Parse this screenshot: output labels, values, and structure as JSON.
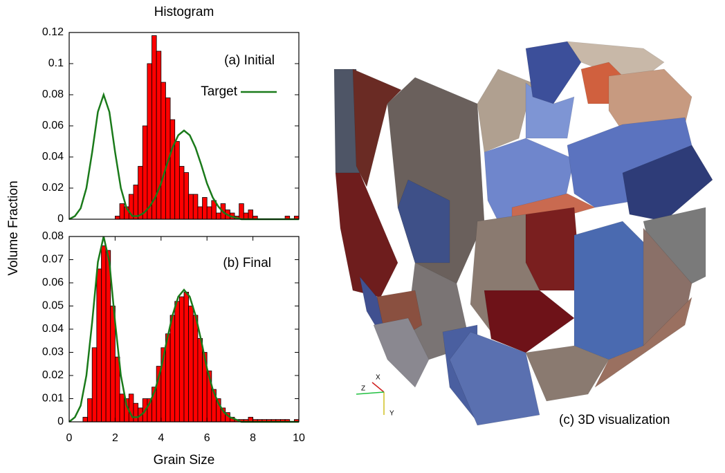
{
  "chart_data": [
    {
      "type": "histogram",
      "title": "Histogram",
      "ylabel": "Volume Fraction",
      "annotation": "(a) Initial",
      "bins": [
        0,
        0.2,
        0.4,
        0.6,
        0.8,
        1,
        1.2,
        1.4,
        1.6,
        1.8,
        2,
        2.2,
        2.4,
        2.6,
        2.8,
        3,
        3.2,
        3.4,
        3.6,
        3.8,
        4,
        4.2,
        4.4,
        4.6,
        4.8,
        5,
        5.2,
        5.4,
        5.6,
        5.8,
        6,
        6.2,
        6.4,
        6.6,
        6.8,
        7,
        7.2,
        7.4,
        7.6,
        7.8,
        8,
        8.2,
        8.4,
        8.6,
        8.8,
        9,
        9.2,
        9.4,
        9.6,
        9.8,
        10
      ],
      "values": [
        0,
        0,
        0,
        0,
        0,
        0,
        0,
        0,
        0,
        0,
        0.002,
        0.01,
        0.008,
        0.016,
        0.022,
        0.034,
        0.06,
        0.1,
        0.118,
        0.108,
        0.088,
        0.078,
        0.064,
        0.05,
        0.034,
        0.03,
        0.016,
        0.016,
        0.008,
        0.014,
        0.008,
        0.012,
        0.004,
        0.01,
        0.006,
        0.004,
        0.002,
        0.01,
        0.004,
        0.006,
        0.002,
        0,
        0,
        0,
        0,
        0,
        0,
        0.002,
        0,
        0.002
      ],
      "color": "#ff0000",
      "overlay": {
        "name": "Target",
        "color": "#1a7a1a",
        "x": [
          0,
          0.25,
          0.5,
          0.75,
          1,
          1.25,
          1.5,
          1.75,
          2,
          2.25,
          2.5,
          2.75,
          3,
          3.25,
          3.5,
          3.75,
          4,
          4.25,
          4.5,
          4.75,
          5,
          5.25,
          5.5,
          5.75,
          6,
          6.25,
          6.5,
          6.75,
          7,
          7.25,
          7.5,
          7.75,
          8,
          8.25,
          8.5,
          8.75,
          9,
          9.25,
          9.5,
          9.75,
          10
        ],
        "values": [
          0,
          0.002,
          0.007,
          0.02,
          0.043,
          0.069,
          0.08,
          0.069,
          0.043,
          0.02,
          0.007,
          0.002,
          0.002,
          0.004,
          0.008,
          0.014,
          0.023,
          0.035,
          0.046,
          0.054,
          0.057,
          0.054,
          0.046,
          0.035,
          0.023,
          0.014,
          0.008,
          0.004,
          0.002,
          0.001,
          0,
          0,
          0,
          0,
          0,
          0,
          0,
          0,
          0,
          0,
          0
        ]
      },
      "legend": "upper right",
      "xlim": [
        0,
        10
      ],
      "ylim": [
        0,
        0.12
      ],
      "yticks": [
        0,
        0.02,
        0.04,
        0.06,
        0.08,
        0.1,
        0.12
      ]
    },
    {
      "type": "histogram",
      "xlabel": "Grain Size",
      "annotation": "(b) Final",
      "bins": [
        0,
        0.2,
        0.4,
        0.6,
        0.8,
        1,
        1.2,
        1.4,
        1.6,
        1.8,
        2,
        2.2,
        2.4,
        2.6,
        2.8,
        3,
        3.2,
        3.4,
        3.6,
        3.8,
        4,
        4.2,
        4.4,
        4.6,
        4.8,
        5,
        5.2,
        5.4,
        5.6,
        5.8,
        6,
        6.2,
        6.4,
        6.6,
        6.8,
        7,
        7.2,
        7.4,
        7.6,
        7.8,
        8,
        8.2,
        8.4,
        8.6,
        8.8,
        9,
        9.2,
        9.4,
        9.6,
        9.8,
        10
      ],
      "values": [
        0,
        0,
        0,
        0.002,
        0.01,
        0.032,
        0.066,
        0.076,
        0.074,
        0.05,
        0.028,
        0.012,
        0.01,
        0.012,
        0.008,
        0.006,
        0.01,
        0.01,
        0.015,
        0.024,
        0.032,
        0.038,
        0.046,
        0.052,
        0.054,
        0.056,
        0.05,
        0.046,
        0.036,
        0.03,
        0.022,
        0.014,
        0.01,
        0.006,
        0.004,
        0.002,
        0.001,
        0.001,
        0.001,
        0.002,
        0.001,
        0.001,
        0.001,
        0.001,
        0.001,
        0.001,
        0.001,
        0.001,
        0,
        0.001
      ],
      "color": "#ff0000",
      "overlay": {
        "color": "#1a7a1a",
        "x": [
          0,
          0.25,
          0.5,
          0.75,
          1,
          1.25,
          1.5,
          1.75,
          2,
          2.25,
          2.5,
          2.75,
          3,
          3.25,
          3.5,
          3.75,
          4,
          4.25,
          4.5,
          4.75,
          5,
          5.25,
          5.5,
          5.75,
          6,
          6.25,
          6.5,
          6.75,
          7,
          7.25,
          7.5,
          7.75,
          8,
          8.25,
          8.5,
          8.75,
          9,
          9.25,
          9.5,
          9.75,
          10
        ],
        "values": [
          0,
          0.002,
          0.007,
          0.02,
          0.043,
          0.069,
          0.08,
          0.069,
          0.043,
          0.02,
          0.007,
          0.002,
          0.002,
          0.004,
          0.008,
          0.014,
          0.023,
          0.035,
          0.046,
          0.054,
          0.057,
          0.054,
          0.046,
          0.035,
          0.023,
          0.014,
          0.008,
          0.004,
          0.002,
          0.001,
          0,
          0,
          0,
          0,
          0,
          0,
          0,
          0,
          0,
          0,
          0
        ]
      },
      "xlim": [
        0,
        10
      ],
      "xticks": [
        0,
        2,
        4,
        6,
        8,
        10
      ],
      "ylim": [
        0,
        0.08
      ],
      "yticks": [
        0,
        0.01,
        0.02,
        0.03,
        0.04,
        0.05,
        0.06,
        0.07,
        0.08
      ]
    }
  ],
  "visualization": {
    "label": "(c) 3D visualization",
    "axis_labels": [
      "X",
      "Y",
      "Z"
    ]
  }
}
